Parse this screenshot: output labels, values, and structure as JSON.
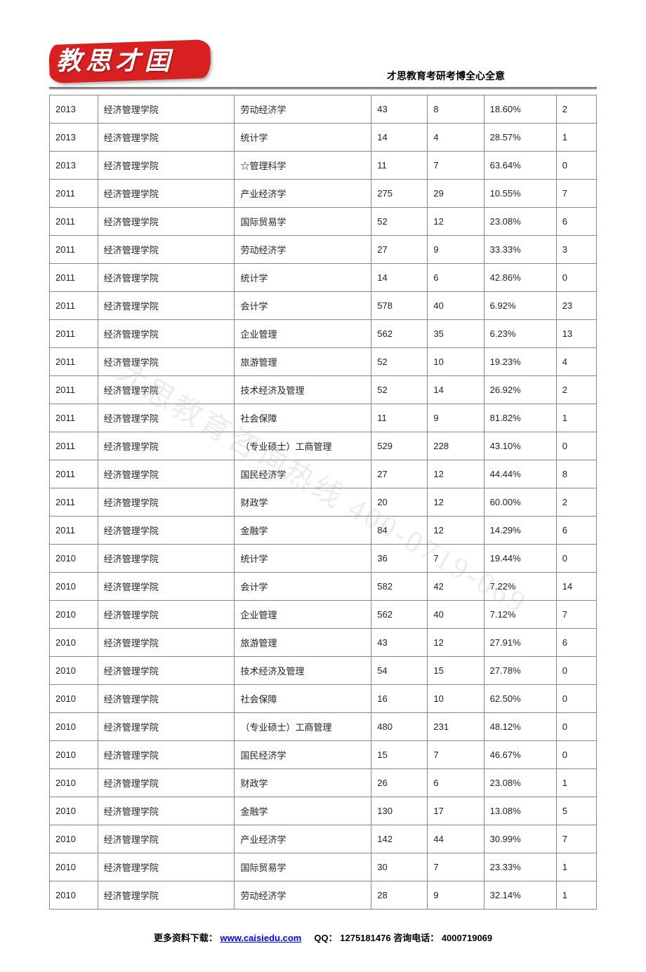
{
  "header": {
    "logo_text": "教思才囯",
    "tagline": "才思教育考研考博全心全意"
  },
  "watermark": "才思教育咨询热线 400-0719-069",
  "table": {
    "col_widths": [
      "60px",
      "170px",
      "170px",
      "70px",
      "70px",
      "90px",
      "50px"
    ],
    "rows": [
      [
        "2013",
        "经济管理学院",
        "劳动经济学",
        "43",
        "8",
        "18.60%",
        "2"
      ],
      [
        "2013",
        "经济管理学院",
        "统计学",
        "14",
        "4",
        "28.57%",
        "1"
      ],
      [
        "2013",
        "经济管理学院",
        "☆管理科学",
        "11",
        "7",
        "63.64%",
        "0"
      ],
      [
        "2011",
        "经济管理学院",
        "产业经济学",
        "275",
        "29",
        "10.55%",
        "7"
      ],
      [
        "2011",
        "经济管理学院",
        "国际贸易学",
        "52",
        "12",
        "23.08%",
        "6"
      ],
      [
        "2011",
        "经济管理学院",
        "劳动经济学",
        "27",
        "9",
        "33.33%",
        "3"
      ],
      [
        "2011",
        "经济管理学院",
        "统计学",
        "14",
        "6",
        "42.86%",
        "0"
      ],
      [
        "2011",
        "经济管理学院",
        "会计学",
        "578",
        "40",
        "6.92%",
        "23"
      ],
      [
        "2011",
        "经济管理学院",
        "企业管理",
        "562",
        "35",
        "6.23%",
        "13"
      ],
      [
        "2011",
        "经济管理学院",
        "旅游管理",
        "52",
        "10",
        "19.23%",
        "4"
      ],
      [
        "2011",
        "经济管理学院",
        "技术经济及管理",
        "52",
        "14",
        "26.92%",
        "2"
      ],
      [
        "2011",
        "经济管理学院",
        "社会保障",
        "11",
        "9",
        "81.82%",
        "1"
      ],
      [
        "2011",
        "经济管理学院",
        "（专业硕士）工商管理",
        "529",
        "228",
        "43.10%",
        "0"
      ],
      [
        "2011",
        "经济管理学院",
        "国民经济学",
        "27",
        "12",
        "44.44%",
        "8"
      ],
      [
        "2011",
        "经济管理学院",
        "财政学",
        "20",
        "12",
        "60.00%",
        "2"
      ],
      [
        "2011",
        "经济管理学院",
        "金融学",
        "84",
        "12",
        "14.29%",
        "6"
      ],
      [
        "2010",
        "经济管理学院",
        "统计学",
        "36",
        "7",
        "19.44%",
        "0"
      ],
      [
        "2010",
        "经济管理学院",
        "会计学",
        "582",
        "42",
        "7.22%",
        "14"
      ],
      [
        "2010",
        "经济管理学院",
        "企业管理",
        "562",
        "40",
        "7.12%",
        "7"
      ],
      [
        "2010",
        "经济管理学院",
        "旅游管理",
        "43",
        "12",
        "27.91%",
        "6"
      ],
      [
        "2010",
        "经济管理学院",
        "技术经济及管理",
        "54",
        "15",
        "27.78%",
        "0"
      ],
      [
        "2010",
        "经济管理学院",
        "社会保障",
        "16",
        "10",
        "62.50%",
        "0"
      ],
      [
        "2010",
        "经济管理学院",
        "（专业硕士）工商管理",
        "480",
        "231",
        "48.12%",
        "0"
      ],
      [
        "2010",
        "经济管理学院",
        "国民经济学",
        "15",
        "7",
        "46.67%",
        "0"
      ],
      [
        "2010",
        "经济管理学院",
        "财政学",
        "26",
        "6",
        "23.08%",
        "1"
      ],
      [
        "2010",
        "经济管理学院",
        "金融学",
        "130",
        "17",
        "13.08%",
        "5"
      ],
      [
        "2010",
        "经济管理学院",
        "产业经济学",
        "142",
        "44",
        "30.99%",
        "7"
      ],
      [
        "2010",
        "经济管理学院",
        "国际贸易学",
        "30",
        "7",
        "23.33%",
        "1"
      ],
      [
        "2010",
        "经济管理学院",
        "劳动经济学",
        "28",
        "9",
        "32.14%",
        "1"
      ]
    ]
  },
  "footer": {
    "prefix": "更多资料下载：",
    "link_text": "www.caisiedu.com",
    "qq_label": "QQ：",
    "qq": "1275181476",
    "phone_label": " 咨询电话：",
    "phone": "4000719069"
  }
}
